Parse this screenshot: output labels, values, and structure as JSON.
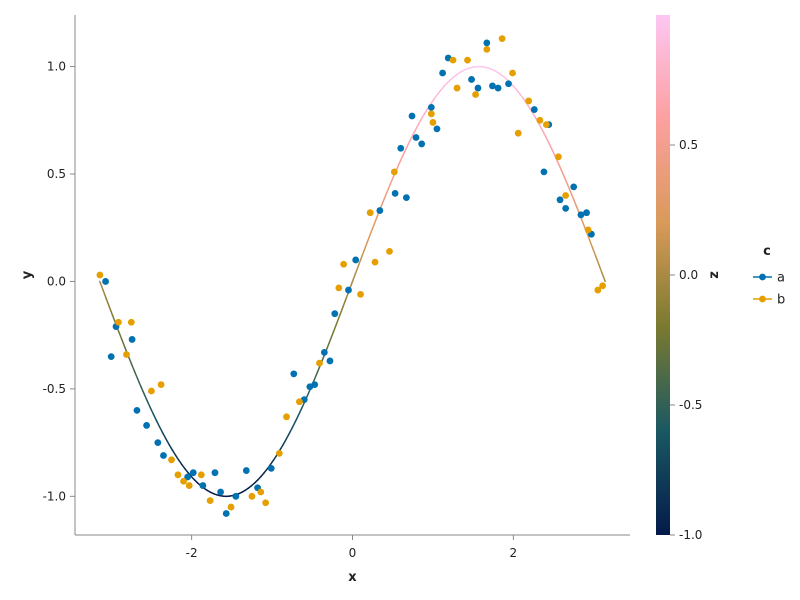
{
  "chart_data": {
    "type": "scatter",
    "xlabel": "x",
    "ylabel": "y",
    "xlim": [
      -3.45,
      3.45
    ],
    "ylim": [
      -1.18,
      1.24
    ],
    "x_ticks": [
      -2,
      0,
      2
    ],
    "x_tick_labels": [
      "-2",
      "0",
      "2"
    ],
    "y_ticks": [
      -1.0,
      -0.5,
      0.0,
      0.5,
      1.0
    ],
    "y_tick_labels": [
      "-1.0",
      "-0.5",
      "0.0",
      "0.5",
      "1.0"
    ],
    "grid": false,
    "line": {
      "function": "sin(x)",
      "x_range": [
        -3.14159,
        3.14159
      ],
      "color_by": "z"
    },
    "colorbar": {
      "label": "z",
      "range": [
        -1.0,
        1.0
      ],
      "ticks": [
        -1.0,
        -0.5,
        0.0,
        0.5
      ],
      "tick_labels": [
        "-1.0",
        "-0.5",
        "0.0",
        "0.5"
      ],
      "colors": [
        "#041a4a",
        "#1a5862",
        "#7a7a30",
        "#d99a5a",
        "#fca0a0",
        "#fdc7f2"
      ]
    },
    "legend": {
      "title": "c",
      "position": "right",
      "entries": [
        "a",
        "b"
      ]
    },
    "series": [
      {
        "name": "a",
        "color": "#0072b2",
        "x": [
          -3.07,
          -3.0,
          -2.94,
          -2.74,
          -2.68,
          -2.56,
          -2.42,
          -2.35,
          -2.05,
          -1.98,
          -1.86,
          -1.71,
          -1.64,
          -1.57,
          -1.45,
          -1.32,
          -1.18,
          -1.01,
          -0.73,
          -0.6,
          -0.53,
          -0.47,
          -0.35,
          -0.28,
          -0.22,
          -0.05,
          0.04,
          0.34,
          0.53,
          0.6,
          0.67,
          0.74,
          0.79,
          0.86,
          0.98,
          1.05,
          1.12,
          1.19,
          1.48,
          1.56,
          1.67,
          1.74,
          1.81,
          1.94,
          2.26,
          2.38,
          2.44,
          2.58,
          2.65,
          2.75,
          2.84,
          2.91,
          2.97
        ],
        "y": [
          0.0,
          -0.35,
          -0.21,
          -0.27,
          -0.6,
          -0.67,
          -0.75,
          -0.81,
          -0.91,
          -0.89,
          -0.95,
          -0.89,
          -0.98,
          -1.08,
          -1.0,
          -0.88,
          -0.96,
          -0.87,
          -0.43,
          -0.55,
          -0.49,
          -0.48,
          -0.33,
          -0.37,
          -0.15,
          -0.04,
          0.1,
          0.33,
          0.41,
          0.62,
          0.39,
          0.77,
          0.67,
          0.64,
          0.81,
          0.71,
          0.97,
          1.04,
          0.94,
          0.9,
          1.11,
          0.91,
          0.9,
          0.92,
          0.8,
          0.51,
          0.73,
          0.38,
          0.34,
          0.44,
          0.31,
          0.32,
          0.22
        ]
      },
      {
        "name": "b",
        "color": "#e69f00",
        "x": [
          -3.14,
          -2.91,
          -2.81,
          -2.75,
          -2.5,
          -2.38,
          -2.25,
          -2.17,
          -2.1,
          -2.03,
          -1.88,
          -1.77,
          -1.51,
          -1.25,
          -1.14,
          -1.08,
          -0.91,
          -0.82,
          -0.66,
          -0.41,
          -0.17,
          -0.11,
          0.1,
          0.22,
          0.28,
          0.46,
          0.52,
          0.98,
          1.0,
          1.25,
          1.3,
          1.43,
          1.53,
          1.67,
          1.86,
          1.99,
          2.06,
          2.19,
          2.33,
          2.41,
          2.56,
          2.65,
          2.93,
          3.05,
          3.11
        ],
        "y": [
          0.03,
          -0.19,
          -0.34,
          -0.19,
          -0.51,
          -0.48,
          -0.83,
          -0.9,
          -0.93,
          -0.95,
          -0.9,
          -1.02,
          -1.05,
          -1.0,
          -0.98,
          -1.03,
          -0.8,
          -0.63,
          -0.56,
          -0.38,
          -0.03,
          0.08,
          -0.06,
          0.32,
          0.09,
          0.14,
          0.51,
          0.78,
          0.74,
          1.03,
          0.9,
          1.03,
          0.87,
          1.08,
          1.13,
          0.97,
          0.69,
          0.84,
          0.75,
          0.73,
          0.58,
          0.4,
          0.24,
          -0.04,
          -0.02
        ]
      }
    ]
  }
}
